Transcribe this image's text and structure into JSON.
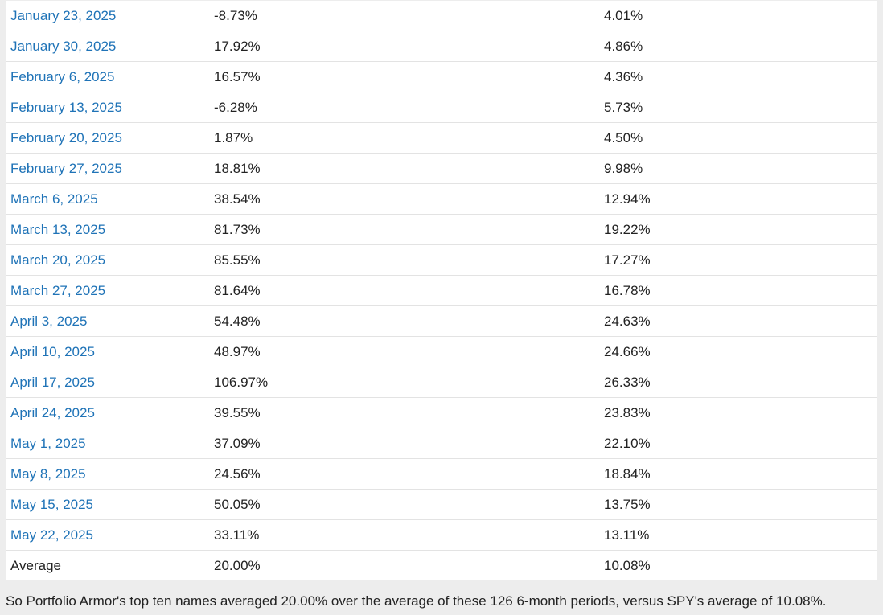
{
  "table": {
    "rows": [
      {
        "date": "January 23, 2025",
        "portfolio": "-8.73%",
        "spy": "4.01%"
      },
      {
        "date": "January 30, 2025",
        "portfolio": "17.92%",
        "spy": "4.86%"
      },
      {
        "date": "February 6, 2025",
        "portfolio": "16.57%",
        "spy": "4.36%"
      },
      {
        "date": "February 13, 2025",
        "portfolio": "-6.28%",
        "spy": "5.73%"
      },
      {
        "date": "February 20, 2025",
        "portfolio": "1.87%",
        "spy": "4.50%"
      },
      {
        "date": "February 27, 2025",
        "portfolio": "18.81%",
        "spy": "9.98%"
      },
      {
        "date": "March 6, 2025",
        "portfolio": "38.54%",
        "spy": "12.94%"
      },
      {
        "date": "March 13, 2025",
        "portfolio": "81.73%",
        "spy": "19.22%"
      },
      {
        "date": "March 20, 2025",
        "portfolio": "85.55%",
        "spy": "17.27%"
      },
      {
        "date": "March 27, 2025",
        "portfolio": "81.64%",
        "spy": "16.78%"
      },
      {
        "date": "April 3, 2025",
        "portfolio": "54.48%",
        "spy": "24.63%"
      },
      {
        "date": "April 10, 2025",
        "portfolio": "48.97%",
        "spy": "24.66%"
      },
      {
        "date": "April 17, 2025",
        "portfolio": "106.97%",
        "spy": "26.33%"
      },
      {
        "date": "April 24, 2025",
        "portfolio": "39.55%",
        "spy": "23.83%"
      },
      {
        "date": "May 1, 2025",
        "portfolio": "37.09%",
        "spy": "22.10%"
      },
      {
        "date": "May 8, 2025",
        "portfolio": "24.56%",
        "spy": "18.84%"
      },
      {
        "date": "May 15, 2025",
        "portfolio": "50.05%",
        "spy": "13.75%"
      },
      {
        "date": "May 22, 2025",
        "portfolio": "33.11%",
        "spy": "13.11%"
      }
    ],
    "average": {
      "label": "Average",
      "portfolio": "20.00%",
      "spy": "10.08%"
    }
  },
  "summary_text": "So Portfolio Armor's top ten names averaged 20.00% over the average of these 126 6-month periods, versus SPY's average of 10.08%.",
  "colors": {
    "link": "#1f73b7",
    "text": "#222222",
    "background": "#ededed",
    "table_background": "#ffffff"
  }
}
